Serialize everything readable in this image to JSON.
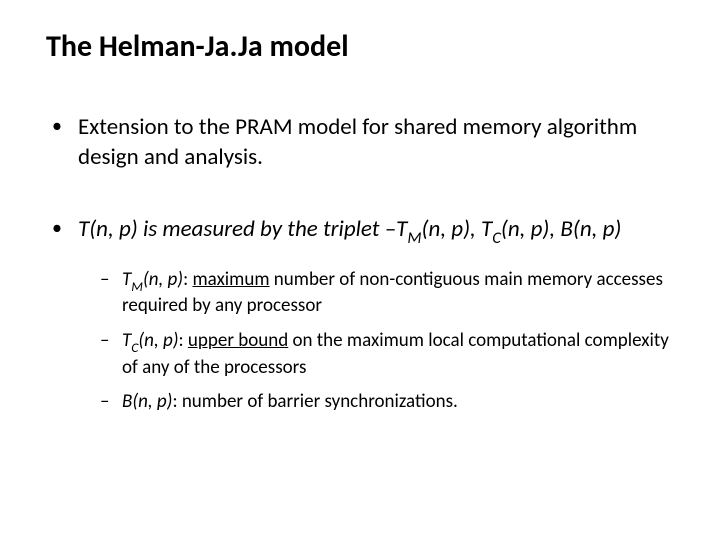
{
  "title": "The Helman-Ja.Ja model",
  "bullets": {
    "b1": "Extension to the PRAM model for shared memory algorithm design and analysis.",
    "b2_pre": "T(n, p) is measured by the triplet –T",
    "b2_sub1": "M",
    "b2_mid1": "(n, p), T",
    "b2_sub2": "C",
    "b2_mid2": "(n, p), B(n, p)"
  },
  "subs": {
    "s1_pre": "T",
    "s1_sub": "M",
    "s1_label": "(n, p)",
    "s1_colon": ": ",
    "s1_kw": "maximum",
    "s1_rest": " number of non-contiguous main memory accesses required by any processor",
    "s2_pre": "T",
    "s2_sub": "C",
    "s2_label": "(n, p)",
    "s2_colon": ": ",
    "s2_kw": "upper bound",
    "s2_rest": " on the maximum local computational complexity of any of the processors",
    "s3_label": "B(n, p)",
    "s3_colon": ": ",
    "s3_rest": "number of barrier synchronizations."
  },
  "glyphs": {
    "bullet": "•",
    "dash": "–"
  },
  "style": {
    "text_color": "#000000",
    "background": "#ffffff",
    "title_fontsize": 30,
    "body_fontsize": 23,
    "sub_fontsize": 19
  }
}
